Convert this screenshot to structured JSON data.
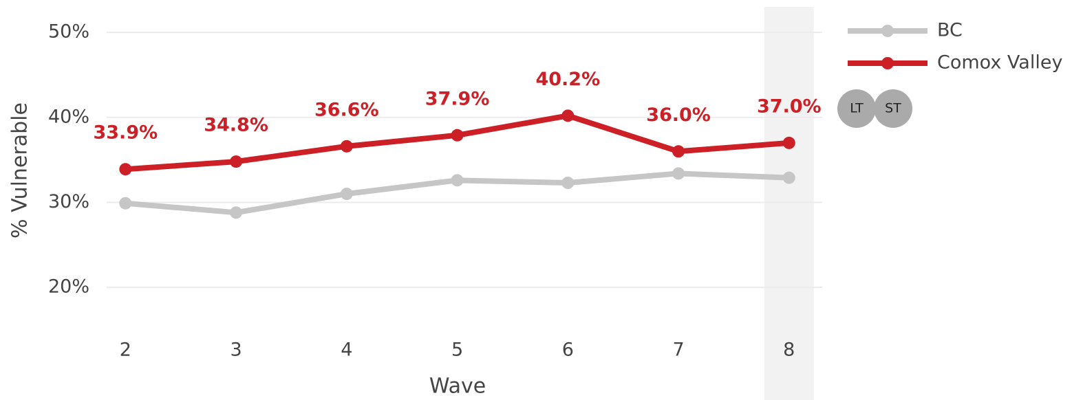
{
  "chart_data": {
    "type": "line",
    "x_label": "Wave",
    "y_label": "% Vulnerable",
    "x": [
      2,
      3,
      4,
      5,
      6,
      7,
      8
    ],
    "xlim": [
      1.83,
      8.3
    ],
    "xticks": [
      2,
      3,
      4,
      5,
      6,
      7,
      8
    ],
    "ylim": [
      15,
      53
    ],
    "yticks": [
      {
        "value": 20,
        "label": "20%"
      },
      {
        "value": 30,
        "label": "30%"
      },
      {
        "value": 40,
        "label": "40%"
      },
      {
        "value": 50,
        "label": "50%"
      }
    ],
    "grid": true,
    "highlight_x": 8,
    "series": [
      {
        "name": "BC",
        "color": "#c6c6c6",
        "values": [
          29.9,
          28.8,
          31.0,
          32.6,
          32.3,
          33.4,
          32.9
        ]
      },
      {
        "name": "Comox Valley",
        "color": "#cc1f26",
        "values": [
          33.9,
          34.8,
          36.6,
          37.9,
          40.2,
          36.0,
          37.0
        ],
        "value_labels": [
          "33.9%",
          "34.8%",
          "36.6%",
          "37.9%",
          "40.2%",
          "36.0%",
          "37.0%"
        ]
      }
    ],
    "buttons": [
      "LT",
      "ST"
    ]
  }
}
